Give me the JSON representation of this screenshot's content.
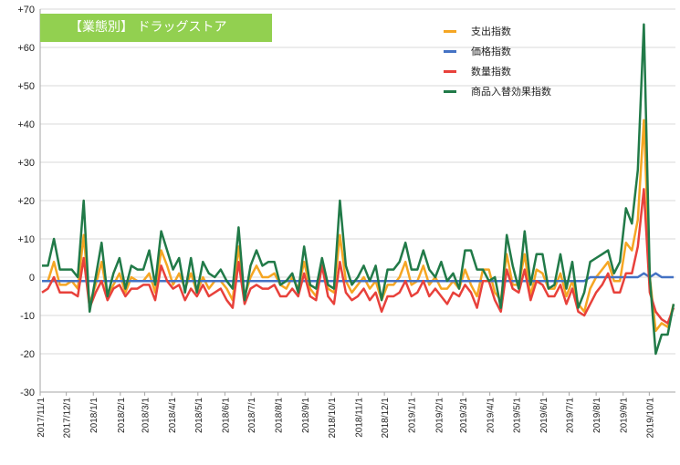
{
  "chart_data": {
    "type": "line",
    "title": "【業態別】 ドラッグストア",
    "ylim": [
      -30,
      70
    ],
    "yticks": [
      "+70",
      "+60",
      "+50",
      "+40",
      "+30",
      "+20",
      "+10",
      "0",
      "-10",
      "-20",
      "-30"
    ],
    "ytick_values": [
      70,
      60,
      50,
      40,
      30,
      20,
      10,
      0,
      -10,
      -20,
      -30
    ],
    "x_start": "2017-11-01",
    "x_end": "2019-10-31",
    "xtick_labels": [
      "2017/11/1",
      "2017/12/1",
      "2018/1/1",
      "2018/2/1",
      "2018/3/1",
      "2018/4/1",
      "2018/5/1",
      "2018/6/1",
      "2018/7/1",
      "2018/8/1",
      "2018/9/1",
      "2018/10/1",
      "2018/11/1",
      "2018/12/1",
      "2019/1/1",
      "2019/2/1",
      "2019/3/1",
      "2019/4/1",
      "2019/5/1",
      "2019/6/1",
      "2019/7/1",
      "2019/8/1",
      "2019/9/1",
      "2019/10/1"
    ],
    "legend_position": "top-right",
    "grid": true,
    "series": [
      {
        "name": "支出指数",
        "color": "#f5a623",
        "values": [
          -1,
          -1,
          4,
          -2,
          -2,
          -1,
          -3,
          11,
          -7,
          -2,
          4,
          -5,
          -2,
          1,
          -4,
          0,
          -1,
          -1,
          1,
          -4,
          7,
          3,
          -2,
          1,
          -3,
          1,
          -4,
          0,
          -3,
          -1,
          -1,
          -3,
          -6,
          8,
          -5,
          0,
          3,
          0,
          0,
          1,
          -2,
          -3,
          0,
          -3,
          4,
          -3,
          -5,
          3,
          -3,
          -4,
          11,
          -1,
          -4,
          -2,
          0,
          -3,
          -1,
          -6,
          -2,
          -2,
          0,
          4,
          -2,
          -1,
          3,
          -2,
          0,
          -3,
          -3,
          -1,
          -3,
          2,
          -2,
          -5,
          2,
          2,
          -4,
          -6,
          6,
          -2,
          -2,
          6,
          -5,
          2,
          1,
          -3,
          -3,
          1,
          -5,
          -1,
          -7,
          -9,
          -3,
          0,
          2,
          4,
          -1,
          -1,
          9,
          7,
          15,
          41,
          0,
          -14,
          -12,
          -13,
          -7
        ],
        "values_note": "weekly; 107 points"
      },
      {
        "name": "価格指数",
        "color": "#4472c4",
        "values": [
          -1,
          -1,
          -1,
          -1,
          -1,
          -1,
          -1,
          -1,
          -1,
          -1,
          -1,
          -1,
          -1,
          -1,
          -1,
          -1,
          -1,
          -1,
          -1,
          -1,
          -1,
          -1,
          -1,
          -1,
          -1,
          -1,
          -1,
          -1,
          -1,
          -1,
          -1,
          -1,
          -1,
          -1,
          -1,
          -1,
          -1,
          -1,
          -1,
          -1,
          -1,
          -1,
          -1,
          -1,
          -1,
          -1,
          -1,
          -1,
          -1,
          -1,
          -1,
          -1,
          -1,
          -1,
          -1,
          -1,
          -1,
          -1,
          -1,
          -1,
          -1,
          -1,
          -1,
          -1,
          -1,
          -1,
          -1,
          -1,
          -1,
          -1,
          -1,
          -1,
          -1,
          -1,
          -1,
          -1,
          -1,
          -1,
          -1,
          -1,
          -1,
          -1,
          -1,
          -1,
          -1,
          -1,
          -1,
          -1,
          -1,
          -1,
          -1,
          -1,
          0,
          0,
          0,
          0,
          0,
          0,
          0,
          0,
          0,
          1,
          0,
          1,
          0,
          0,
          0
        ]
      },
      {
        "name": "数量指数",
        "color": "#e8413b",
        "values": [
          -4,
          -3,
          0,
          -4,
          -4,
          -4,
          -5,
          5,
          -8,
          -4,
          -1,
          -6,
          -3,
          -2,
          -5,
          -3,
          -3,
          -2,
          -2,
          -6,
          3,
          -1,
          -3,
          -2,
          -6,
          -3,
          -5,
          -2,
          -5,
          -4,
          -3,
          -6,
          -8,
          4,
          -7,
          -3,
          -2,
          -3,
          -3,
          -2,
          -5,
          -5,
          -3,
          -5,
          1,
          -5,
          -6,
          3,
          -5,
          -7,
          4,
          -4,
          -6,
          -5,
          -3,
          -6,
          -4,
          -9,
          -5,
          -5,
          -4,
          -1,
          -5,
          -4,
          -1,
          -5,
          -3,
          -5,
          -7,
          -4,
          -5,
          -2,
          -4,
          -8,
          -1,
          -1,
          -6,
          -9,
          2,
          -3,
          -4,
          2,
          -6,
          -1,
          -2,
          -5,
          -5,
          -2,
          -7,
          -3,
          -9,
          -10,
          -7,
          -4,
          -2,
          1,
          -4,
          -4,
          1,
          1,
          8,
          23,
          -4,
          -9,
          -11,
          -12,
          -8
        ]
      },
      {
        "name": "商品入替効果指数",
        "color": "#217a48",
        "values": [
          3,
          3,
          10,
          2,
          2,
          2,
          0,
          20,
          -9,
          0,
          9,
          -5,
          1,
          5,
          -3,
          3,
          2,
          2,
          7,
          -2,
          12,
          7,
          2,
          5,
          -4,
          5,
          -4,
          4,
          1,
          0,
          2,
          -1,
          -3,
          13,
          -6,
          3,
          7,
          3,
          4,
          4,
          -2,
          -1,
          1,
          -4,
          8,
          -2,
          -3,
          5,
          -2,
          -3,
          20,
          3,
          -2,
          0,
          3,
          -1,
          3,
          -6,
          2,
          2,
          4,
          9,
          2,
          2,
          7,
          2,
          0,
          4,
          -1,
          1,
          -3,
          7,
          7,
          2,
          2,
          -1,
          0,
          -8,
          11,
          3,
          -3,
          12,
          -2,
          6,
          6,
          -3,
          -2,
          6,
          -3,
          4,
          -8,
          -4,
          4,
          5,
          6,
          7,
          1,
          4,
          18,
          14,
          28,
          66,
          0,
          -20,
          -15,
          -15,
          -7
        ]
      }
    ]
  }
}
